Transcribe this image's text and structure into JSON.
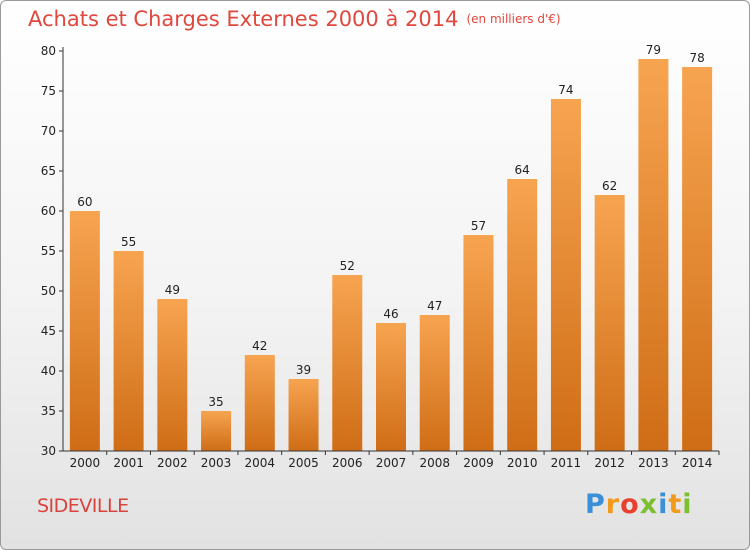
{
  "title": "Achats et Charges Externes 2000 à 2014",
  "unit": "(en milliers d'€)",
  "commune": "SIDEVILLE",
  "logo": {
    "letters": [
      "P",
      "r",
      "o",
      "x",
      "i",
      "t",
      "i"
    ],
    "colors": [
      "#3b8fd8",
      "#f19a1c",
      "#e8402f",
      "#7cbf2f",
      "#3b8fd8",
      "#f19a1c",
      "#7cbf2f"
    ]
  },
  "chart_data": {
    "type": "bar",
    "categories": [
      "2000",
      "2001",
      "2002",
      "2003",
      "2004",
      "2005",
      "2006",
      "2007",
      "2008",
      "2009",
      "2010",
      "2011",
      "2012",
      "2013",
      "2014"
    ],
    "values": [
      60,
      55,
      49,
      35,
      42,
      39,
      52,
      46,
      47,
      57,
      64,
      74,
      62,
      79,
      78
    ],
    "ylim": [
      30,
      80
    ],
    "yticks": [
      30,
      35,
      40,
      45,
      50,
      55,
      60,
      65,
      70,
      75,
      80
    ],
    "bar_color": "#f29a3e",
    "grid": false
  }
}
